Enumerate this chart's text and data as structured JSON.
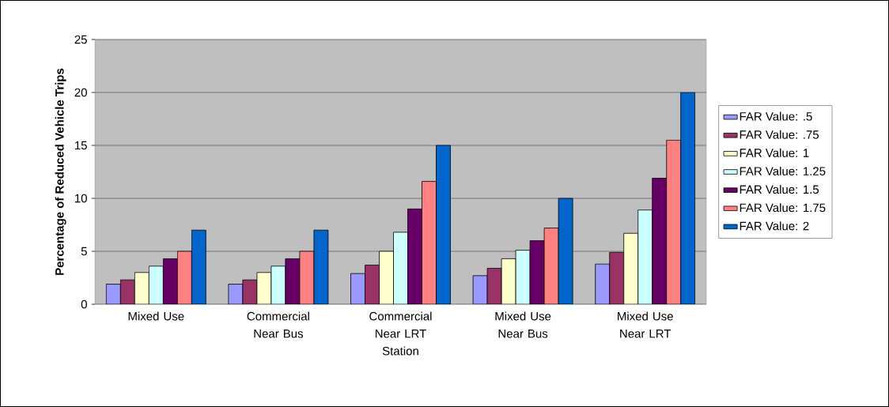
{
  "chart_data": {
    "type": "bar",
    "ylabel": "Percentage of Reduced Vehicle Trips",
    "categories": [
      "Mixed Use",
      "Commercial Near Bus",
      "Commercial Near LRT Station",
      "Mixed Use Near Bus",
      "Mixed Use Near LRT"
    ],
    "series": [
      {
        "name": "FAR Value: .5",
        "color": "#9999ff",
        "values": [
          1.9,
          1.9,
          2.9,
          2.7,
          3.8
        ]
      },
      {
        "name": "FAR Value: .75",
        "color": "#993366",
        "values": [
          2.3,
          2.3,
          3.7,
          3.4,
          4.9
        ]
      },
      {
        "name": "FAR Value: 1",
        "color": "#ffffcc",
        "values": [
          3.0,
          3.0,
          5.0,
          4.3,
          6.7
        ]
      },
      {
        "name": "FAR Value: 1.25",
        "color": "#ccffff",
        "values": [
          3.6,
          3.6,
          6.8,
          5.1,
          8.9
        ]
      },
      {
        "name": "FAR Value: 1.5",
        "color": "#660066",
        "values": [
          4.3,
          4.3,
          9.0,
          6.0,
          11.9
        ]
      },
      {
        "name": "FAR Value: 1.75",
        "color": "#ff8080",
        "values": [
          5.0,
          5.0,
          11.6,
          7.2,
          15.5
        ]
      },
      {
        "name": "FAR Value: 2",
        "color": "#0066cc",
        "values": [
          7,
          7,
          15,
          10,
          20
        ]
      }
    ],
    "ylim": [
      0,
      25
    ],
    "yticks": [
      0,
      5,
      10,
      15,
      20,
      25
    ],
    "grid": "y",
    "legend": "right"
  }
}
